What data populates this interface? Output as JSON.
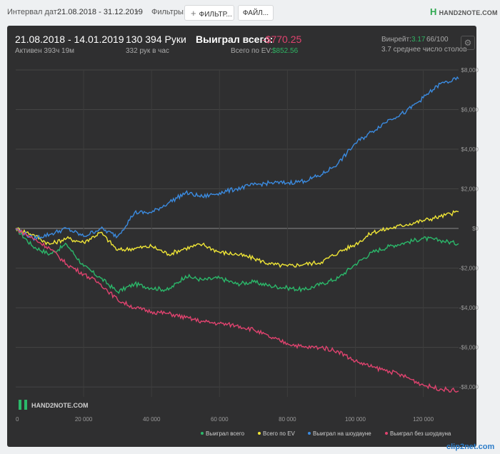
{
  "topbar": {
    "interval_label": "Интервал дат:",
    "interval_value": "21.08.2018 - 31.12.2019",
    "filters_label": "Фильтры:",
    "filter_button": "ФИЛЬТР...",
    "file_button": "ФАЙЛ...",
    "logo": "HAND2NOTE.COM"
  },
  "summary": {
    "range": "21.08.2018 - 14.01.2019",
    "active": "Активен 393ч 19м",
    "hands": "130 394 Руки",
    "hands_per_hour": "332 рук в час",
    "won_total_label": "Выиграл всего:",
    "won_total_value": "-$770.25",
    "ev_label": "Всего по EV:",
    "ev_value": "$852.56",
    "winrate_label": "Винрейт:",
    "winrate_value": "3.17",
    "winrate_rest": "66/100",
    "avg_tables": "3.7 среднее число столов"
  },
  "watermark": "HAND2NOTE.COM",
  "clip_watermark": "clip2net.com",
  "chart_data": {
    "type": "line",
    "x_ticks": [
      "0",
      "20 000",
      "40 000",
      "60 000",
      "80 000",
      "100 000",
      "120 000"
    ],
    "y_ticks": [
      "$8,000",
      "$6,000",
      "$4,000",
      "$2,000",
      "$0",
      "-$2,000",
      "-$4,000",
      "-$6,000",
      "-$8,000"
    ],
    "xlim": [
      0,
      130394
    ],
    "ylim": [
      -8500,
      8000
    ],
    "grid": true,
    "legend_position": "bottom-right",
    "x": [
      0,
      5000,
      10000,
      15000,
      20000,
      25000,
      30000,
      35000,
      40000,
      45000,
      50000,
      55000,
      60000,
      65000,
      70000,
      75000,
      80000,
      85000,
      90000,
      95000,
      100000,
      105000,
      110000,
      115000,
      120000,
      125000,
      130394
    ],
    "series": [
      {
        "name": "Выиграл всего",
        "color": "#2bb86a",
        "values": [
          0,
          -900,
          -1300,
          -800,
          -1900,
          -2500,
          -3200,
          -2800,
          -3000,
          -3100,
          -2400,
          -2600,
          -2500,
          -2800,
          -2700,
          -2900,
          -3000,
          -3100,
          -2800,
          -2500,
          -1800,
          -1200,
          -900,
          -700,
          -500,
          -600,
          -770
        ]
      },
      {
        "name": "Всего по EV",
        "color": "#f0e636",
        "values": [
          0,
          -300,
          -800,
          -500,
          -700,
          -200,
          -1100,
          -1000,
          -900,
          -1300,
          -1000,
          -800,
          -1200,
          -1300,
          -1500,
          -1800,
          -1900,
          -1800,
          -1700,
          -1200,
          -800,
          -200,
          0,
          200,
          400,
          600,
          850
        ]
      },
      {
        "name": "Выиграл на шоудауне",
        "color": "#3b8be0",
        "values": [
          0,
          -500,
          -300,
          0,
          -400,
          0,
          -400,
          800,
          800,
          1300,
          1800,
          1600,
          1800,
          2000,
          2200,
          2300,
          2300,
          2400,
          2700,
          3300,
          4300,
          4900,
          5500,
          5900,
          6600,
          7300,
          7550
        ]
      },
      {
        "name": "Выиграл без шоудауна",
        "color": "#e0436f",
        "values": [
          0,
          -500,
          -1000,
          -1800,
          -2300,
          -2800,
          -3600,
          -4000,
          -4200,
          -4300,
          -4500,
          -4700,
          -4800,
          -4900,
          -5100,
          -5500,
          -5800,
          -6000,
          -6000,
          -6200,
          -6700,
          -7000,
          -7200,
          -7500,
          -7900,
          -8100,
          -8200
        ]
      }
    ]
  }
}
